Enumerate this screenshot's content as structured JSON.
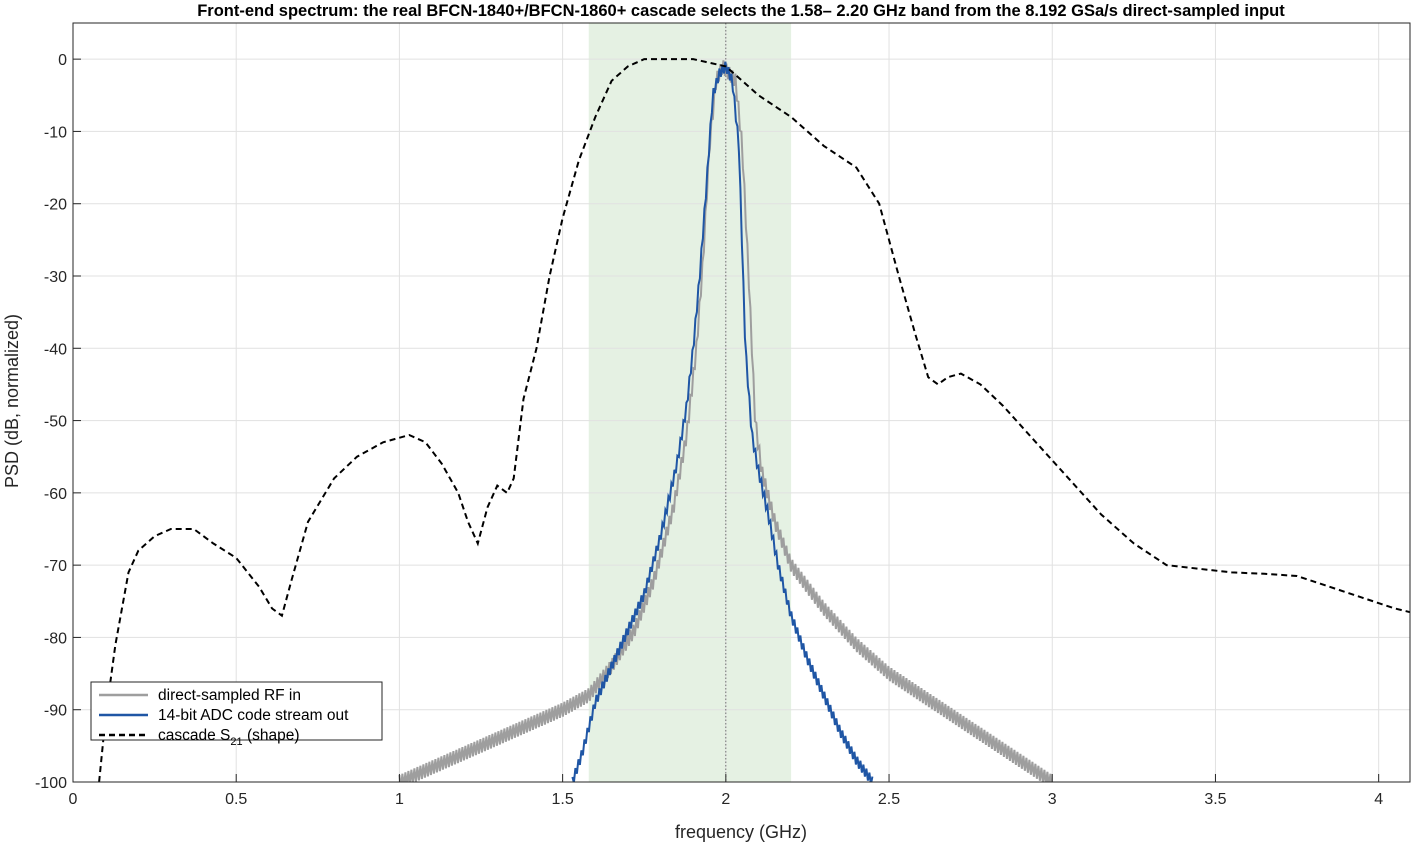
{
  "chart_data": {
    "type": "line",
    "title": "Front-end spectrum: the real BFCN-1840+/BFCN-1860+ cascade selects the 1.58– 2.20 GHz band from the 8.192 GSa/s direct-sampled input",
    "xlabel": "frequency (GHz)",
    "ylabel": "PSD (dB, normalized)",
    "xlim": [
      0,
      4.096
    ],
    "ylim": [
      -100,
      5
    ],
    "xticks": [
      0,
      0.5,
      1,
      1.5,
      2,
      2.5,
      3,
      3.5,
      4
    ],
    "xtick_labels": [
      "0",
      "0.5",
      "1",
      "1.5",
      "2",
      "2.5",
      "3",
      "3.5",
      "4"
    ],
    "yticks": [
      0,
      -10,
      -20,
      -30,
      -40,
      -50,
      -60,
      -70,
      -80,
      -90,
      -100
    ],
    "ytick_labels": [
      "0",
      "-10",
      "-20",
      "-30",
      "-40",
      "-50",
      "-60",
      "-70",
      "-80",
      "-90",
      "-100"
    ],
    "grid": true,
    "legend_location": "bottom-left",
    "passband": {
      "from": 1.58,
      "to": 2.2,
      "color": "#e5f1e3"
    },
    "center_marker": {
      "x": 2.0
    },
    "series": [
      {
        "name": "direct-sampled RF in",
        "color": "#9e9e9e",
        "style": "solid",
        "x": [
          1.0,
          1.1,
          1.2,
          1.3,
          1.4,
          1.5,
          1.58,
          1.65,
          1.72,
          1.78,
          1.84,
          1.88,
          1.91,
          1.93,
          1.95,
          1.97,
          1.99,
          2.01,
          2.03,
          2.05,
          2.07,
          2.09,
          2.11,
          2.15,
          2.2,
          2.3,
          2.4,
          2.5,
          2.6,
          2.7,
          2.8,
          2.9,
          3.0
        ],
        "y": [
          -100,
          -98,
          -96,
          -94,
          -92,
          -90,
          -88,
          -84,
          -79,
          -72,
          -62,
          -52,
          -40,
          -28,
          -12,
          -3,
          -1,
          -2,
          -3,
          -12,
          -30,
          -50,
          -57,
          -64,
          -70,
          -76,
          -81,
          -85,
          -88,
          -91,
          -94,
          -97,
          -100
        ]
      },
      {
        "name": "14-bit ADC code stream out",
        "color": "#1f56a5",
        "style": "solid",
        "x": [
          1.53,
          1.56,
          1.6,
          1.65,
          1.7,
          1.75,
          1.8,
          1.85,
          1.88,
          1.9,
          1.92,
          1.94,
          1.96,
          1.98,
          2.0,
          2.02,
          2.04,
          2.06,
          2.08,
          2.1,
          2.13,
          2.16,
          2.2,
          2.25,
          2.3,
          2.35,
          2.4,
          2.45
        ],
        "y": [
          -100,
          -96,
          -89,
          -84,
          -79,
          -74,
          -66,
          -56,
          -48,
          -40,
          -30,
          -18,
          -5,
          -2,
          -1,
          -3,
          -12,
          -40,
          -52,
          -57,
          -63,
          -70,
          -77,
          -83,
          -88,
          -93,
          -97,
          -100
        ]
      },
      {
        "name": "cascade S21 (shape)",
        "label_main": "cascade S",
        "label_sub": "21",
        "label_tail": " (shape)",
        "color": "#000000",
        "style": "dashed",
        "x": [
          0.08,
          0.1,
          0.13,
          0.17,
          0.2,
          0.25,
          0.3,
          0.37,
          0.43,
          0.5,
          0.57,
          0.61,
          0.64,
          0.67,
          0.72,
          0.8,
          0.87,
          0.95,
          1.03,
          1.08,
          1.13,
          1.18,
          1.21,
          1.24,
          1.27,
          1.3,
          1.33,
          1.35,
          1.38,
          1.42,
          1.46,
          1.5,
          1.55,
          1.6,
          1.65,
          1.7,
          1.75,
          1.8,
          1.85,
          1.9,
          1.95,
          2.0,
          2.05,
          2.1,
          2.2,
          2.3,
          2.4,
          2.47,
          2.53,
          2.58,
          2.62,
          2.65,
          2.68,
          2.72,
          2.78,
          2.85,
          2.95,
          3.05,
          3.15,
          3.25,
          3.35,
          3.45,
          3.55,
          3.65,
          3.75,
          3.85,
          3.95,
          4.05,
          4.096
        ],
        "y": [
          -100,
          -91,
          -81,
          -71,
          -68,
          -66,
          -65,
          -65,
          -67,
          -69,
          -73,
          -76,
          -77,
          -72,
          -64,
          -58,
          -55,
          -53,
          -52,
          -53,
          -56,
          -60,
          -64,
          -67,
          -62,
          -59,
          -60,
          -58,
          -47,
          -40,
          -30,
          -22,
          -14,
          -8,
          -3,
          -1,
          0,
          0,
          0,
          0,
          -0.5,
          -1,
          -3,
          -5,
          -8,
          -12,
          -15,
          -20,
          -30,
          -38,
          -44,
          -45,
          -44,
          -43.5,
          -45,
          -48,
          -53,
          -58,
          -63,
          -67,
          -70,
          -70.5,
          -71,
          -71.2,
          -71.5,
          -73,
          -74.5,
          -76,
          -76.5
        ]
      }
    ]
  }
}
